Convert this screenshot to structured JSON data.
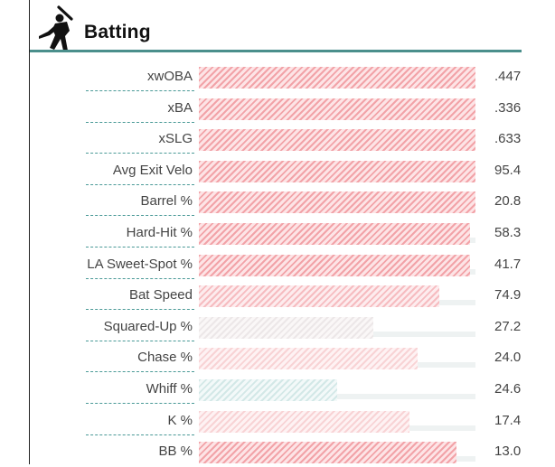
{
  "section": {
    "title": "Batting",
    "icon": "batter-silhouette-icon"
  },
  "rows": [
    {
      "label": "xwOBA",
      "value": ".447",
      "percentile": 100,
      "tone": "red-strong"
    },
    {
      "label": "xBA",
      "value": ".336",
      "percentile": 100,
      "tone": "red-strong"
    },
    {
      "label": "xSLG",
      "value": ".633",
      "percentile": 100,
      "tone": "red-strong"
    },
    {
      "label": "Avg Exit Velo",
      "value": "95.4",
      "percentile": 100,
      "tone": "red-strong"
    },
    {
      "label": "Barrel %",
      "value": "20.8",
      "percentile": 100,
      "tone": "red-strong"
    },
    {
      "label": "Hard-Hit %",
      "value": "58.3",
      "percentile": 98,
      "tone": "red-strong"
    },
    {
      "label": "LA Sweet-Spot %",
      "value": "41.7",
      "percentile": 98,
      "tone": "red-strong"
    },
    {
      "label": "Bat Speed",
      "value": "74.9",
      "percentile": 87,
      "tone": "red-med"
    },
    {
      "label": "Squared-Up %",
      "value": "27.2",
      "percentile": 63,
      "tone": "gray"
    },
    {
      "label": "Chase %",
      "value": "24.0",
      "percentile": 79,
      "tone": "red-light"
    },
    {
      "label": "Whiff %",
      "value": "24.6",
      "percentile": 50,
      "tone": "teal"
    },
    {
      "label": "K %",
      "value": "17.4",
      "percentile": 76,
      "tone": "red-light"
    },
    {
      "label": "BB %",
      "value": "13.0",
      "percentile": 93,
      "tone": "red-strong"
    }
  ],
  "colors": {
    "accent": "#4a8f8c",
    "hot": "#f2a3a8",
    "cold": "#d3e8e7"
  }
}
